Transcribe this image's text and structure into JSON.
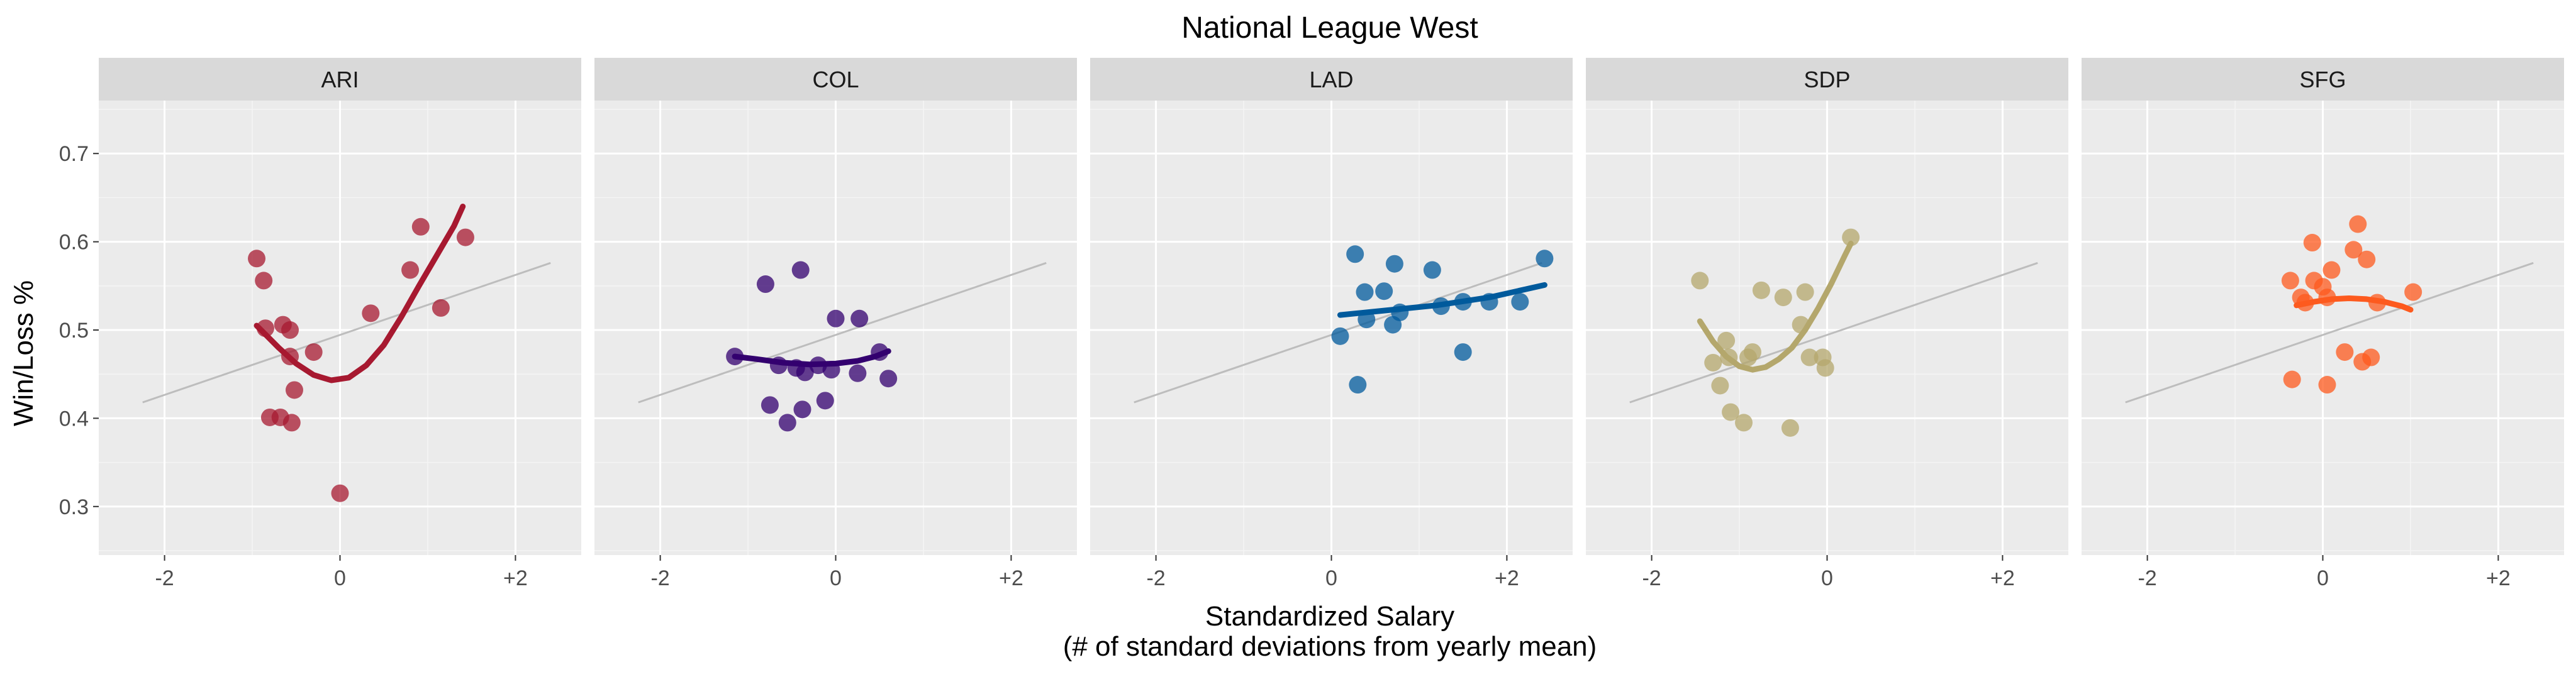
{
  "chart_data": {
    "type": "scatter",
    "title": "National League West",
    "xlabel": "Standardized Salary",
    "xlabel_sub": "(# of standard deviations from yearly mean)",
    "ylabel": "Win/Loss %",
    "xlim": [
      -2.75,
      2.75
    ],
    "ylim": [
      0.245,
      0.76
    ],
    "x_ticks": [
      -2,
      0,
      2
    ],
    "x_tick_labels": [
      "-2",
      "0",
      "+2"
    ],
    "y_ticks": [
      0.3,
      0.4,
      0.5,
      0.6,
      0.7
    ],
    "y_tick_labels": [
      "0.3",
      "0.4",
      "0.5",
      "0.6",
      "0.7"
    ],
    "grid": true,
    "reference_line": {
      "color": "#bdbdbd",
      "points": [
        [
          -2.25,
          0.418
        ],
        [
          2.4,
          0.576
        ]
      ]
    },
    "panels": [
      {
        "name": "ARI",
        "color": "#a71930",
        "points": [
          [
            -0.95,
            0.581
          ],
          [
            -0.87,
            0.556
          ],
          [
            -0.85,
            0.502
          ],
          [
            -0.8,
            0.401
          ],
          [
            -0.68,
            0.401
          ],
          [
            -0.65,
            0.506
          ],
          [
            -0.57,
            0.5
          ],
          [
            -0.57,
            0.47
          ],
          [
            -0.55,
            0.395
          ],
          [
            -0.52,
            0.432
          ],
          [
            -0.3,
            0.475
          ],
          [
            0.0,
            0.315
          ],
          [
            0.35,
            0.519
          ],
          [
            0.8,
            0.568
          ],
          [
            0.92,
            0.617
          ],
          [
            1.15,
            0.525
          ],
          [
            1.43,
            0.605
          ]
        ],
        "trend": [
          [
            -0.95,
            0.505
          ],
          [
            -0.7,
            0.48
          ],
          [
            -0.5,
            0.462
          ],
          [
            -0.3,
            0.449
          ],
          [
            -0.1,
            0.443
          ],
          [
            0.1,
            0.446
          ],
          [
            0.3,
            0.46
          ],
          [
            0.5,
            0.483
          ],
          [
            0.7,
            0.515
          ],
          [
            0.9,
            0.55
          ],
          [
            1.1,
            0.584
          ],
          [
            1.3,
            0.618
          ],
          [
            1.4,
            0.64
          ]
        ]
      },
      {
        "name": "COL",
        "color": "#33006f",
        "points": [
          [
            -1.15,
            0.47
          ],
          [
            -0.8,
            0.552
          ],
          [
            -0.75,
            0.415
          ],
          [
            -0.65,
            0.46
          ],
          [
            -0.55,
            0.395
          ],
          [
            -0.45,
            0.457
          ],
          [
            -0.4,
            0.568
          ],
          [
            -0.38,
            0.41
          ],
          [
            -0.35,
            0.452
          ],
          [
            -0.2,
            0.46
          ],
          [
            -0.12,
            0.42
          ],
          [
            -0.05,
            0.455
          ],
          [
            0.0,
            0.513
          ],
          [
            0.25,
            0.451
          ],
          [
            0.27,
            0.513
          ],
          [
            0.5,
            0.475
          ],
          [
            0.6,
            0.445
          ]
        ],
        "trend": [
          [
            -1.15,
            0.47
          ],
          [
            -0.9,
            0.467
          ],
          [
            -0.6,
            0.463
          ],
          [
            -0.3,
            0.461
          ],
          [
            0.0,
            0.462
          ],
          [
            0.25,
            0.465
          ],
          [
            0.45,
            0.47
          ],
          [
            0.6,
            0.476
          ]
        ]
      },
      {
        "name": "LAD",
        "color": "#005a9c",
        "points": [
          [
            0.1,
            0.493
          ],
          [
            0.27,
            0.586
          ],
          [
            0.3,
            0.438
          ],
          [
            0.38,
            0.543
          ],
          [
            0.4,
            0.512
          ],
          [
            0.6,
            0.544
          ],
          [
            0.7,
            0.506
          ],
          [
            0.72,
            0.575
          ],
          [
            0.78,
            0.52
          ],
          [
            1.15,
            0.568
          ],
          [
            1.25,
            0.527
          ],
          [
            1.5,
            0.475
          ],
          [
            1.5,
            0.532
          ],
          [
            1.8,
            0.532
          ],
          [
            2.15,
            0.532
          ],
          [
            2.43,
            0.581
          ]
        ],
        "trend": [
          [
            0.1,
            0.517
          ],
          [
            0.6,
            0.522
          ],
          [
            1.2,
            0.528
          ],
          [
            1.8,
            0.537
          ],
          [
            2.43,
            0.551
          ]
        ]
      },
      {
        "name": "SDP",
        "color": "#b4a76c",
        "points": [
          [
            -1.45,
            0.556
          ],
          [
            -1.3,
            0.463
          ],
          [
            -1.22,
            0.437
          ],
          [
            -1.15,
            0.488
          ],
          [
            -1.12,
            0.469
          ],
          [
            -1.1,
            0.407
          ],
          [
            -0.95,
            0.395
          ],
          [
            -0.9,
            0.469
          ],
          [
            -0.85,
            0.475
          ],
          [
            -0.75,
            0.545
          ],
          [
            -0.5,
            0.537
          ],
          [
            -0.42,
            0.389
          ],
          [
            -0.3,
            0.506
          ],
          [
            -0.25,
            0.543
          ],
          [
            -0.2,
            0.469
          ],
          [
            -0.05,
            0.469
          ],
          [
            -0.02,
            0.457
          ],
          [
            0.27,
            0.605
          ]
        ],
        "trend": [
          [
            -1.45,
            0.51
          ],
          [
            -1.3,
            0.487
          ],
          [
            -1.15,
            0.47
          ],
          [
            -1.0,
            0.459
          ],
          [
            -0.85,
            0.455
          ],
          [
            -0.7,
            0.458
          ],
          [
            -0.55,
            0.467
          ],
          [
            -0.4,
            0.48
          ],
          [
            -0.25,
            0.5
          ],
          [
            -0.1,
            0.525
          ],
          [
            0.05,
            0.553
          ],
          [
            0.2,
            0.584
          ],
          [
            0.27,
            0.598
          ]
        ]
      },
      {
        "name": "SFG",
        "color": "#fd5a1e",
        "points": [
          [
            -0.37,
            0.556
          ],
          [
            -0.35,
            0.444
          ],
          [
            -0.25,
            0.537
          ],
          [
            -0.2,
            0.531
          ],
          [
            -0.12,
            0.599
          ],
          [
            -0.1,
            0.556
          ],
          [
            0.0,
            0.549
          ],
          [
            0.05,
            0.537
          ],
          [
            0.05,
            0.438
          ],
          [
            0.1,
            0.568
          ],
          [
            0.25,
            0.475
          ],
          [
            0.35,
            0.591
          ],
          [
            0.4,
            0.62
          ],
          [
            0.45,
            0.464
          ],
          [
            0.5,
            0.58
          ],
          [
            0.55,
            0.469
          ],
          [
            0.62,
            0.531
          ],
          [
            1.03,
            0.543
          ]
        ],
        "trend": [
          [
            -0.3,
            0.528
          ],
          [
            -0.1,
            0.532
          ],
          [
            0.1,
            0.535
          ],
          [
            0.3,
            0.536
          ],
          [
            0.5,
            0.535
          ],
          [
            0.7,
            0.532
          ],
          [
            0.9,
            0.527
          ],
          [
            1.0,
            0.523
          ]
        ]
      }
    ]
  }
}
